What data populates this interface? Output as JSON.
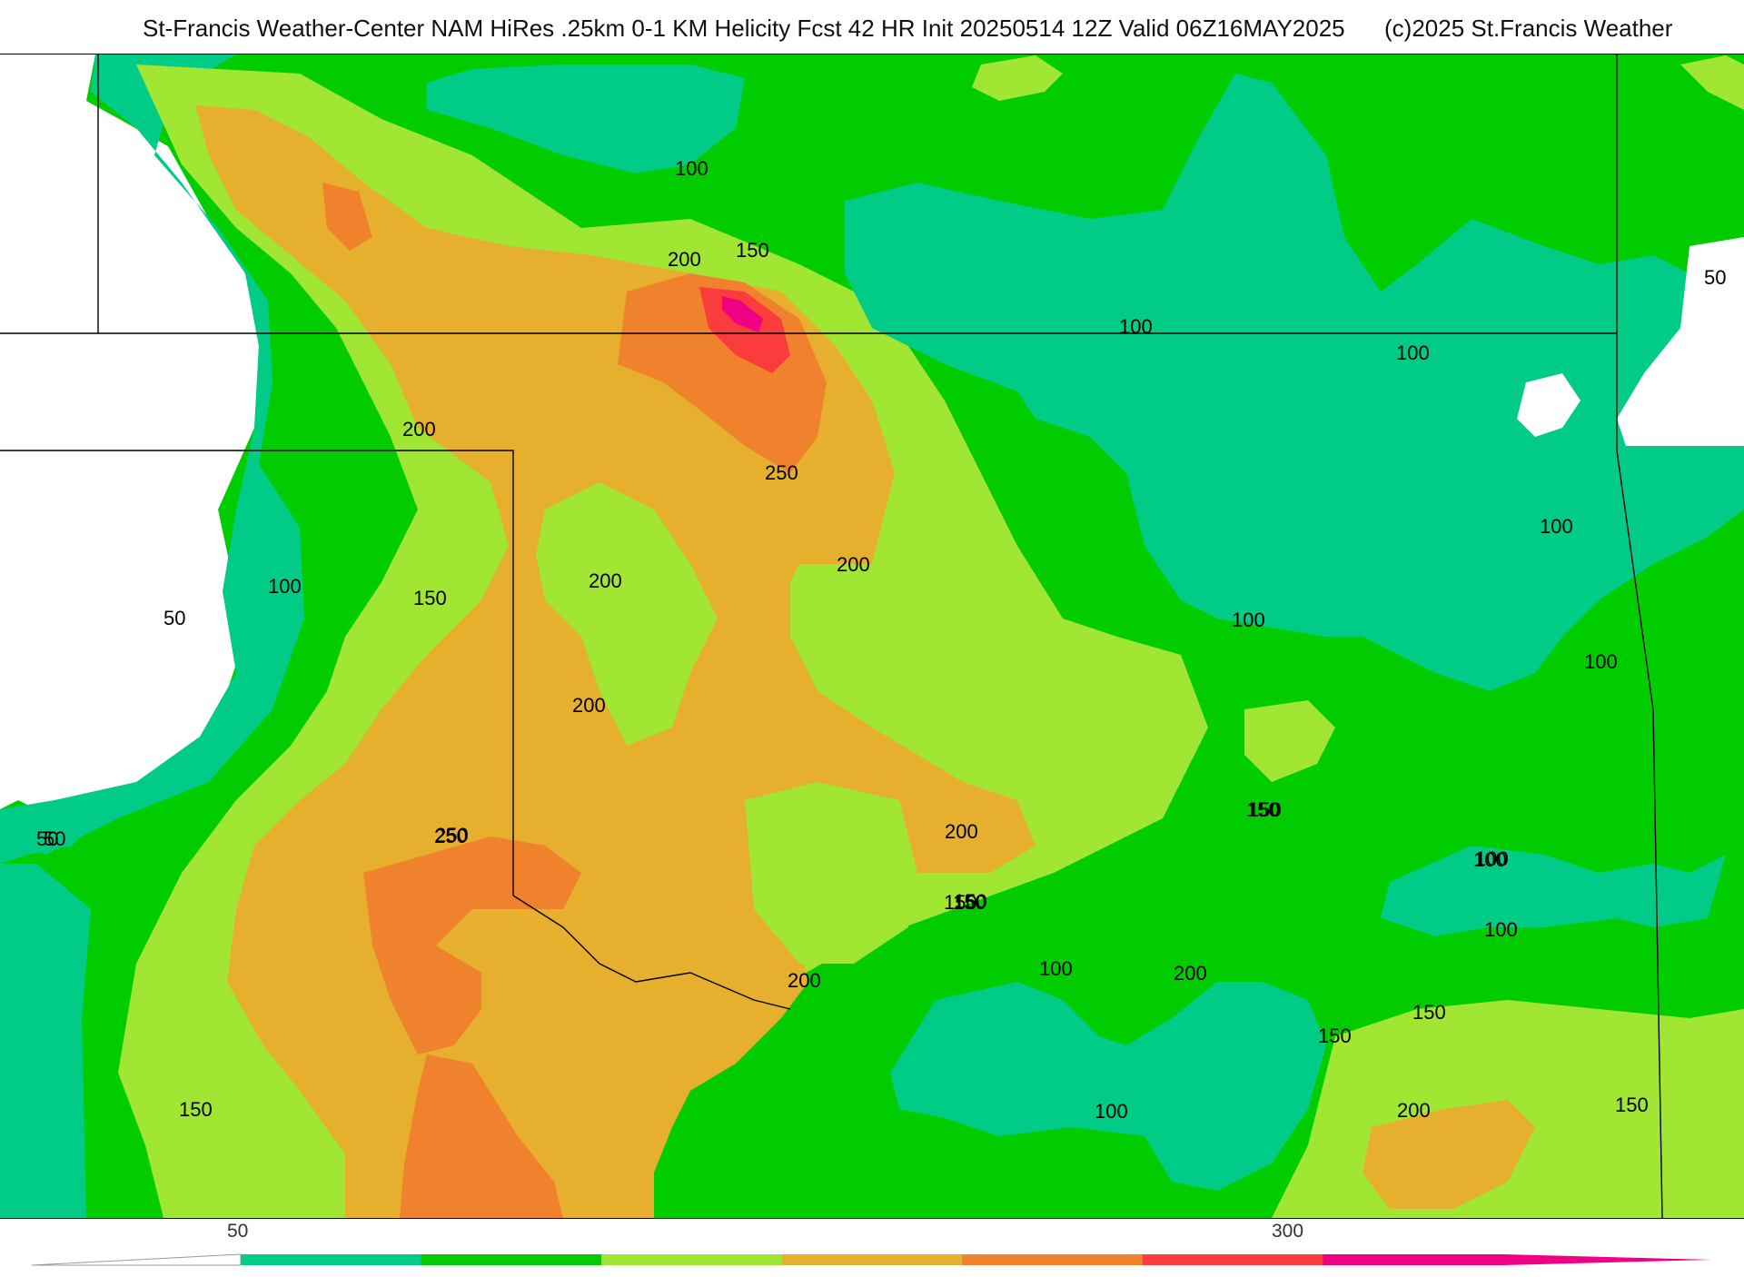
{
  "header": {
    "title": "St-Francis Weather-Center NAM HiRes .25km 0-1 KM Helicity Fcst 42 HR Init 20250514 12Z  Valid 06Z16MAY2025",
    "copyright": "(c)2025 St.Francis Weather"
  },
  "legend": {
    "tick_labels": [
      "50",
      "300"
    ],
    "bins": [
      {
        "min": 50,
        "max": 100,
        "color": "#00cc88"
      },
      {
        "min": 100,
        "max": 150,
        "color": "#00cc00"
      },
      {
        "min": 150,
        "max": 200,
        "color": "#a0e632"
      },
      {
        "min": 200,
        "max": 250,
        "color": "#e6af2d"
      },
      {
        "min": 250,
        "max": 300,
        "color": "#f0822d"
      },
      {
        "min": 300,
        "max": 350,
        "color": "#fa3c3c"
      },
      {
        "min": 350,
        "max": 400,
        "color": "#f00082"
      }
    ]
  },
  "map": {
    "contour_labels": [
      "50",
      "100",
      "150",
      "200",
      "250",
      "200",
      "150",
      "100",
      "50",
      "100",
      "150",
      "200",
      "250",
      "200",
      "150",
      "100",
      "50",
      "100",
      "150",
      "200",
      "100",
      "150",
      "200",
      "100",
      "150",
      "200",
      "100",
      "150",
      "200",
      "250",
      "100",
      "150",
      "200",
      "100",
      "150",
      "100",
      "150",
      "100",
      "50"
    ]
  }
}
